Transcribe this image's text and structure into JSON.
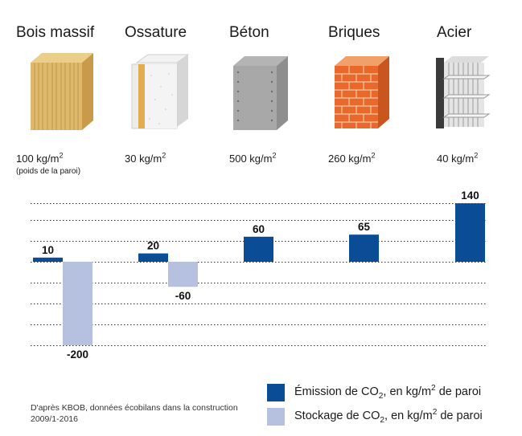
{
  "materials": [
    {
      "name": "Bois massif",
      "weight_value": "100 kg/m",
      "weight_sup": "2",
      "note": "(poids de la paroi)"
    },
    {
      "name": "Ossature",
      "weight_value": "30 kg/m",
      "weight_sup": "2",
      "note": ""
    },
    {
      "name": "Béton",
      "weight_value": "500 kg/m",
      "weight_sup": "2",
      "note": ""
    },
    {
      "name": "Briques",
      "weight_value": "260 kg/m",
      "weight_sup": "2",
      "note": ""
    },
    {
      "name": "Acier",
      "weight_value": "40 kg/m",
      "weight_sup": "2",
      "note": ""
    }
  ],
  "chart_data": {
    "type": "bar",
    "categories": [
      "Bois massif",
      "Ossature",
      "Béton",
      "Briques",
      "Acier"
    ],
    "series": [
      {
        "name": "Émission de CO2, en kg/m2 de paroi",
        "values": [
          10,
          20,
          60,
          65,
          140
        ],
        "color": "#0b4c97"
      },
      {
        "name": "Stockage de CO2, en kg/m2 de paroi",
        "values": [
          -200,
          -60,
          null,
          null,
          null
        ],
        "color": "#b6c1e0"
      }
    ],
    "data_labels": [
      "10",
      "20",
      "60",
      "65",
      "140",
      "-200",
      "-60"
    ],
    "ylim": [
      -200,
      140
    ],
    "gridlines": [
      140,
      100,
      50,
      0,
      -50,
      -100,
      -150,
      -200
    ],
    "grid": true,
    "grid_style": "dotted"
  },
  "legend": {
    "emission": {
      "prefix": "Émission de CO",
      "sub": "2",
      "mid": ", en kg/m",
      "sup": "2",
      "suffix": " de paroi"
    },
    "storage": {
      "prefix": "Stockage de CO",
      "sub": "2",
      "mid": ", en kg/m",
      "sup": "2",
      "suffix": " de paroi"
    }
  },
  "source": {
    "line1": "D'après KBOB, données écobilans dans la construction",
    "line2": "2009/1-2016"
  },
  "colors": {
    "emission": "#0b4c97",
    "storage": "#b6c1e0"
  }
}
